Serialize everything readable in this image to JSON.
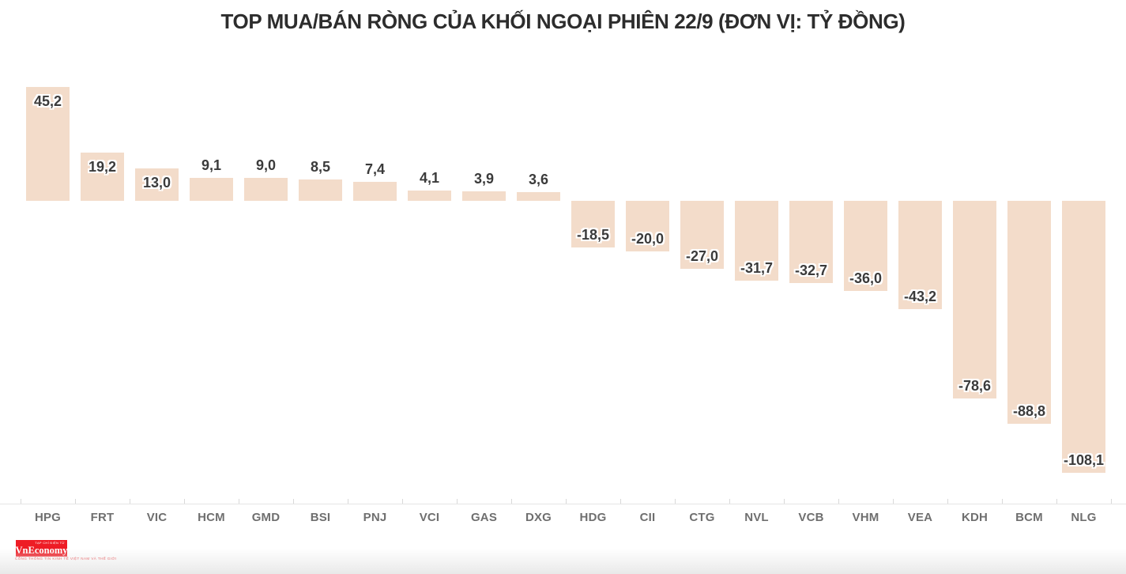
{
  "header": {
    "title": "TOP MUA/BÁN RÒNG CỦA KHỐI NGOẠI PHIÊN 22/9 (ĐƠN VỊ: TỶ ĐỒNG)"
  },
  "chart_data": {
    "type": "bar",
    "title": "TOP MUA/BÁN RÒNG CỦA KHỐI NGOẠI PHIÊN 22/9 (ĐƠN VỊ: TỶ ĐỒNG)",
    "xlabel": "",
    "ylabel": "",
    "unit": "tỷ đồng",
    "categories": [
      "HPG",
      "FRT",
      "VIC",
      "HCM",
      "GMD",
      "BSI",
      "PNJ",
      "VCI",
      "GAS",
      "DXG",
      "HDG",
      "CII",
      "CTG",
      "NVL",
      "VCB",
      "VHM",
      "VEA",
      "KDH",
      "BCM",
      "NLG"
    ],
    "values": [
      45.2,
      19.2,
      13.0,
      9.1,
      9.0,
      8.5,
      7.4,
      4.1,
      3.9,
      3.6,
      -18.5,
      -20.0,
      -27.0,
      -31.7,
      -32.7,
      -36.0,
      -43.2,
      -78.6,
      -88.8,
      -108.1
    ],
    "value_labels": [
      "45,2",
      "19,2",
      "13,0",
      "9,1",
      "9,0",
      "8,5",
      "7,4",
      "4,1",
      "3,9",
      "3,6",
      "-18,5",
      "-20,0",
      "-27,0",
      "-31,7",
      "-32,7",
      "-36,0",
      "-43,2",
      "-78,6",
      "-88,8",
      "-108,1"
    ],
    "ylim": [
      -115,
      50
    ],
    "grid": false,
    "legend": "none",
    "bar_color": "#f3dcca",
    "value_label_color": "#3b3b3b",
    "value_label_halo": "#ffffff",
    "axis_line_color": "#e5e5e5",
    "tick_color": "#d9d9d9",
    "x_label_color": "#6f6f6f"
  },
  "footer": {
    "logo": {
      "text": "VnEconomy",
      "top_text": "TẠP CHÍ ĐIỆN TỬ",
      "tagline": "CỔNG THÔNG TIN KINH TẾ VIỆT NAM VÀ THẾ GIỚI",
      "bg_color": "#ee1c25",
      "text_color": "#ffffff"
    }
  }
}
